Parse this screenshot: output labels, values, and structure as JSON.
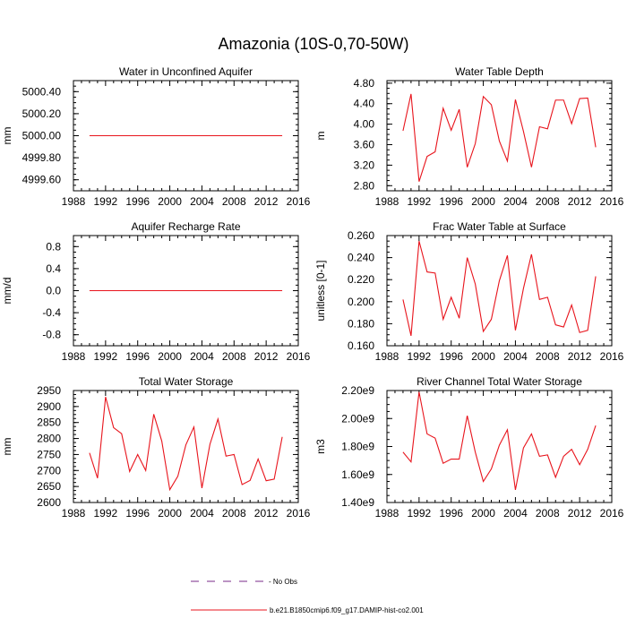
{
  "figure": {
    "title": "Amazonia (10S-0,70-50W)",
    "colors": {
      "model_line": "#e8141c",
      "obs_line": "#7a2a8a",
      "frame": "#000000"
    },
    "legend": {
      "items": [
        {
          "label": "- No Obs",
          "style": "dashed",
          "color": "#7a2a8a"
        },
        {
          "label": "b.e21.B1850cmip6.f09_g17.DAMIP-hist-co2.001",
          "style": "solid",
          "color": "#e8141c"
        }
      ]
    }
  },
  "chart_data": [
    {
      "type": "line",
      "title": "Water in Unconfined Aquifer",
      "xlabel": "",
      "ylabel": "mm",
      "xlim": [
        1988,
        2016
      ],
      "ylim": [
        4999.5,
        5000.5
      ],
      "xticks": [
        1988,
        1992,
        1996,
        2000,
        2004,
        2008,
        2012,
        2016
      ],
      "xtick_labels": [
        "1988",
        "1992",
        "1996",
        "2000",
        "2004",
        "2008",
        "2012",
        "2016"
      ],
      "yticks": [
        4999.6,
        4999.8,
        5000.0,
        5000.2,
        5000.4
      ],
      "ytick_labels": [
        "4999.60",
        "4999.80",
        "5000.00",
        "5000.20",
        "5000.40"
      ],
      "grid": false,
      "x": [
        1990,
        1991,
        1992,
        1993,
        1994,
        1995,
        1996,
        1997,
        1998,
        1999,
        2000,
        2001,
        2002,
        2003,
        2004,
        2005,
        2006,
        2007,
        2008,
        2009,
        2010,
        2011,
        2012,
        2013,
        2014
      ],
      "series": [
        {
          "values": [
            5000,
            5000,
            5000,
            5000,
            5000,
            5000,
            5000,
            5000,
            5000,
            5000,
            5000,
            5000,
            5000,
            5000,
            5000,
            5000,
            5000,
            5000,
            5000,
            5000,
            5000,
            5000,
            5000,
            5000,
            5000
          ]
        }
      ]
    },
    {
      "type": "line",
      "title": "Water Table Depth",
      "xlabel": "",
      "ylabel": "m",
      "xlim": [
        1988,
        2016
      ],
      "ylim": [
        2.7,
        4.85
      ],
      "xticks": [
        1988,
        1992,
        1996,
        2000,
        2004,
        2008,
        2012,
        2016
      ],
      "xtick_labels": [
        "1988",
        "1992",
        "1996",
        "2000",
        "2004",
        "2008",
        "2012",
        "2016"
      ],
      "yticks": [
        2.8,
        3.2,
        3.6,
        4.0,
        4.4,
        4.8
      ],
      "ytick_labels": [
        "2.80",
        "3.20",
        "3.60",
        "4.00",
        "4.40",
        "4.80"
      ],
      "grid": false,
      "x": [
        1990,
        1991,
        1992,
        1993,
        1994,
        1995,
        1996,
        1997,
        1998,
        1999,
        2000,
        2001,
        2002,
        2003,
        2004,
        2005,
        2006,
        2007,
        2008,
        2009,
        2010,
        2011,
        2012,
        2013,
        2014
      ],
      "series": [
        {
          "values": [
            3.87,
            4.59,
            2.88,
            3.37,
            3.46,
            4.31,
            3.88,
            4.29,
            3.16,
            3.62,
            4.54,
            4.38,
            3.67,
            3.28,
            4.48,
            3.86,
            3.16,
            3.95,
            3.91,
            4.47,
            4.47,
            4.01,
            4.5,
            4.51,
            3.55
          ]
        }
      ]
    },
    {
      "type": "line",
      "title": "Aquifer Recharge Rate",
      "xlabel": "",
      "ylabel": "mm/d",
      "xlim": [
        1988,
        2016
      ],
      "ylim": [
        -1.0,
        1.0
      ],
      "xticks": [
        1988,
        1992,
        1996,
        2000,
        2004,
        2008,
        2012,
        2016
      ],
      "xtick_labels": [
        "1988",
        "1992",
        "1996",
        "2000",
        "2004",
        "2008",
        "2012",
        "2016"
      ],
      "yticks": [
        -0.8,
        -0.4,
        0.0,
        0.4,
        0.8
      ],
      "ytick_labels": [
        "-0.8",
        "-0.4",
        "0.0",
        "0.4",
        "0.8"
      ],
      "grid": false,
      "x": [
        1990,
        1991,
        1992,
        1993,
        1994,
        1995,
        1996,
        1997,
        1998,
        1999,
        2000,
        2001,
        2002,
        2003,
        2004,
        2005,
        2006,
        2007,
        2008,
        2009,
        2010,
        2011,
        2012,
        2013,
        2014
      ],
      "series": [
        {
          "values": [
            0,
            0,
            0,
            0,
            0,
            0,
            0,
            0,
            0,
            0,
            0,
            0,
            0,
            0,
            0,
            0,
            0,
            0,
            0,
            0,
            0,
            0,
            0,
            0,
            0
          ]
        }
      ]
    },
    {
      "type": "line",
      "title": "Frac Water Table at Surface",
      "xlabel": "",
      "ylabel": "unitless [0-1]",
      "xlim": [
        1988,
        2016
      ],
      "ylim": [
        0.16,
        0.26
      ],
      "xticks": [
        1988,
        1992,
        1996,
        2000,
        2004,
        2008,
        2012,
        2016
      ],
      "xtick_labels": [
        "1988",
        "1992",
        "1996",
        "2000",
        "2004",
        "2008",
        "2012",
        "2016"
      ],
      "yticks": [
        0.16,
        0.18,
        0.2,
        0.22,
        0.24,
        0.26
      ],
      "ytick_labels": [
        "0.160",
        "0.180",
        "0.200",
        "0.220",
        "0.240",
        "0.260"
      ],
      "grid": false,
      "x": [
        1990,
        1991,
        1992,
        1993,
        1994,
        1995,
        1996,
        1997,
        1998,
        1999,
        2000,
        2001,
        2002,
        2003,
        2004,
        2005,
        2006,
        2007,
        2008,
        2009,
        2010,
        2011,
        2012,
        2013,
        2014
      ],
      "series": [
        {
          "values": [
            0.202,
            0.169,
            0.255,
            0.227,
            0.226,
            0.184,
            0.204,
            0.185,
            0.24,
            0.216,
            0.173,
            0.184,
            0.219,
            0.242,
            0.174,
            0.212,
            0.243,
            0.202,
            0.204,
            0.179,
            0.177,
            0.197,
            0.172,
            0.174,
            0.223
          ]
        }
      ]
    },
    {
      "type": "line",
      "title": "Total Water Storage",
      "xlabel": "",
      "ylabel": "mm",
      "xlim": [
        1988,
        2016
      ],
      "ylim": [
        2600,
        2950
      ],
      "xticks": [
        1988,
        1992,
        1996,
        2000,
        2004,
        2008,
        2012,
        2016
      ],
      "xtick_labels": [
        "1988",
        "1992",
        "1996",
        "2000",
        "2004",
        "2008",
        "2012",
        "2016"
      ],
      "yticks": [
        2600,
        2650,
        2700,
        2750,
        2800,
        2850,
        2900,
        2950
      ],
      "ytick_labels": [
        "2600",
        "2650",
        "2700",
        "2750",
        "2800",
        "2850",
        "2900",
        "2950"
      ],
      "grid": false,
      "x": [
        1990,
        1991,
        1992,
        1993,
        1994,
        1995,
        1996,
        1997,
        1998,
        1999,
        2000,
        2001,
        2002,
        2003,
        2004,
        2005,
        2006,
        2007,
        2008,
        2009,
        2010,
        2011,
        2012,
        2013,
        2014
      ],
      "series": [
        {
          "values": [
            2755,
            2676,
            2930,
            2834,
            2815,
            2697,
            2750,
            2700,
            2876,
            2792,
            2640,
            2682,
            2780,
            2836,
            2645,
            2782,
            2861,
            2745,
            2750,
            2656,
            2669,
            2736,
            2668,
            2673,
            2805
          ]
        }
      ]
    },
    {
      "type": "line",
      "title": "River Channel Total Water Storage",
      "xlabel": "",
      "ylabel": "m3",
      "xlim": [
        1988,
        2016
      ],
      "ylim": [
        1400000000.0,
        2200000000.0
      ],
      "xticks": [
        1988,
        1992,
        1996,
        2000,
        2004,
        2008,
        2012,
        2016
      ],
      "xtick_labels": [
        "1988",
        "1992",
        "1996",
        "2000",
        "2004",
        "2008",
        "2012",
        "2016"
      ],
      "yticks": [
        1400000000.0,
        1600000000.0,
        1800000000.0,
        2000000000.0,
        2200000000.0
      ],
      "ytick_labels": [
        "1.40e9",
        "1.60e9",
        "1.80e9",
        "2.00e9",
        "2.20e9"
      ],
      "grid": false,
      "x": [
        1990,
        1991,
        1992,
        1993,
        1994,
        1995,
        1996,
        1997,
        1998,
        1999,
        2000,
        2001,
        2002,
        2003,
        2004,
        2005,
        2006,
        2007,
        2008,
        2009,
        2010,
        2011,
        2012,
        2013,
        2014
      ],
      "series": [
        {
          "values": [
            1760000000.0,
            1690000000.0,
            2190000000.0,
            1890000000.0,
            1860000000.0,
            1680000000.0,
            1710000000.0,
            1710000000.0,
            2020000000.0,
            1760000000.0,
            1550000000.0,
            1640000000.0,
            1810000000.0,
            1920000000.0,
            1490000000.0,
            1790000000.0,
            1890000000.0,
            1730000000.0,
            1740000000.0,
            1580000000.0,
            1730000000.0,
            1780000000.0,
            1670000000.0,
            1780000000.0,
            1950000000.0
          ]
        }
      ]
    }
  ]
}
